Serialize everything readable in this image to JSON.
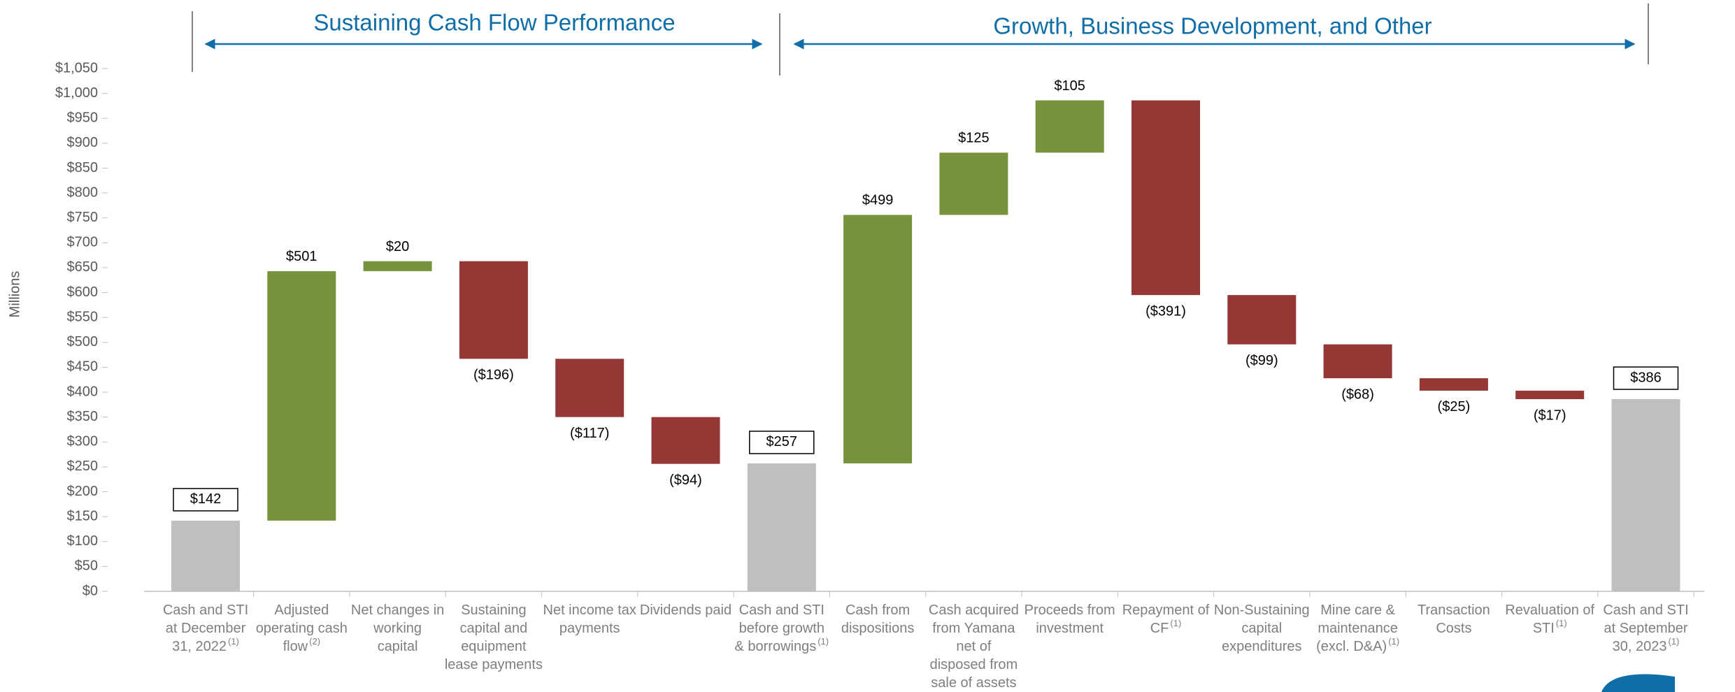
{
  "chart_data": {
    "type": "waterfall",
    "annotations": [
      "Sustaining Cash Flow Performance",
      "Growth, Business Development, and Other"
    ],
    "ylabel": "Millions",
    "categories": [
      "Cash and STI at December 31, 2022",
      "Adjusted operating cash flow",
      "Net changes in working capital",
      "Sustaining capital and equipment lease payments",
      "Net income tax payments",
      "Dividends paid",
      "Cash and STI before growth & borrowings",
      "Cash from dispositions",
      "Cash acquired from Yamana net of disposed from sale of assets",
      "Proceeds from investment",
      "Repayment of CF",
      "Non-Sustaining capital expenditures",
      "Mine care & maintenance (excl. D&A)",
      "Transaction Costs",
      "Revaluation of STI",
      "Cash and STI at September 30, 2023"
    ],
    "category_notes": [
      "(1)",
      "(2)",
      null,
      null,
      null,
      null,
      "(1)",
      null,
      null,
      null,
      "(1)",
      null,
      "(1)",
      null,
      "(1)",
      "(1)"
    ],
    "measure": [
      "total",
      "relative",
      "relative",
      "relative",
      "relative",
      "relative",
      "total",
      "relative",
      "relative",
      "relative",
      "relative",
      "relative",
      "relative",
      "relative",
      "relative",
      "total"
    ],
    "values": [
      142,
      501,
      20,
      -196,
      -117,
      -94,
      257,
      499,
      125,
      105,
      -391,
      -99,
      -68,
      -25,
      -17,
      386
    ],
    "value_labels": [
      "$142",
      "$501",
      "$20",
      "($196)",
      "($117)",
      "($94)",
      "$257",
      "$499",
      "$125",
      "$105",
      "($391)",
      "($99)",
      "($68)",
      "($25)",
      "($17)",
      "$386"
    ],
    "colors": {
      "total": "#bfbfbf",
      "increase": "#77933c",
      "decrease": "#953735"
    },
    "ylim": [
      0,
      1050
    ],
    "yticks": [
      {
        "value": 0,
        "label": "$0"
      },
      {
        "value": 50,
        "label": "$50"
      },
      {
        "value": 100,
        "label": "$100"
      },
      {
        "value": 150,
        "label": "$150"
      },
      {
        "value": 200,
        "label": "$200"
      },
      {
        "value": 250,
        "label": "$250"
      },
      {
        "value": 300,
        "label": "$300"
      },
      {
        "value": 350,
        "label": "$350"
      },
      {
        "value": 400,
        "label": "$400"
      },
      {
        "value": 450,
        "label": "$450"
      },
      {
        "value": 500,
        "label": "$500"
      },
      {
        "value": 550,
        "label": "$550"
      },
      {
        "value": 600,
        "label": "$600"
      },
      {
        "value": 650,
        "label": "$650"
      },
      {
        "value": 700,
        "label": "$700"
      },
      {
        "value": 750,
        "label": "$750"
      },
      {
        "value": 800,
        "label": "$800"
      },
      {
        "value": 850,
        "label": "$850"
      },
      {
        "value": 900,
        "label": "$900"
      },
      {
        "value": 950,
        "label": "$950"
      },
      {
        "value": 1000,
        "label": "$1,000"
      },
      {
        "value": 1050,
        "label": "$1,050"
      }
    ]
  }
}
